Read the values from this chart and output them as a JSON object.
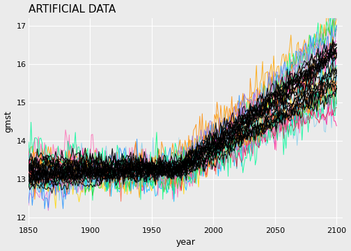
{
  "title": "ARTIFICIAL DATA",
  "xlabel": "year",
  "ylabel": "gmst",
  "xlim": [
    1850,
    2105
  ],
  "ylim": [
    11.8,
    17.2
  ],
  "xticks": [
    1850,
    1900,
    1950,
    2000,
    2050,
    2100
  ],
  "yticks": [
    12,
    13,
    14,
    15,
    16,
    17
  ],
  "background_color": "#EBEBEB",
  "grid_color": "#FFFFFF",
  "title_fontsize": 11,
  "axis_label_fontsize": 9,
  "tick_fontsize": 8,
  "year_start": 1850,
  "year_end": 2100,
  "base_temp": 13.25,
  "seed": 42,
  "colors": [
    "#FF69B4",
    "#87CEEB",
    "#FFA500",
    "#228B22",
    "#FF1493",
    "#00BFFF",
    "#FF8C00",
    "#20B2AA",
    "#DA70D6",
    "#FFD700",
    "#00FF7F",
    "#DC143C",
    "#FF69B4",
    "#ADD8E6",
    "#FFA500",
    "#32CD32",
    "#FF1493",
    "#1E90FF",
    "#FF8C00",
    "#00CED1",
    "#9370DB",
    "#FF6347",
    "#00FA9A",
    "#FF69B4",
    "#87CEEB",
    "#FFA500",
    "#228B22",
    "#FF1493",
    "#00BFFF",
    "#FF8C00"
  ],
  "n_colored": 25,
  "n_black": 20,
  "lw_color": 0.7,
  "lw_black": 0.8
}
